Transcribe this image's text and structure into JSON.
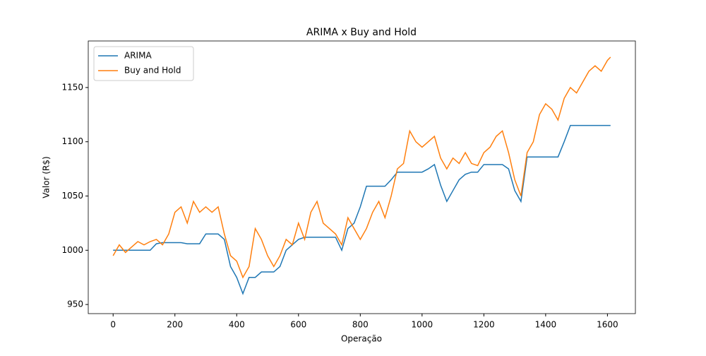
{
  "chart_data": {
    "type": "line",
    "title": "ARIMA x Buy and Hold",
    "x_label": "Operação",
    "y_label": "Valor (R$)",
    "x": [
      0,
      20,
      40,
      60,
      80,
      100,
      120,
      140,
      160,
      180,
      200,
      220,
      240,
      260,
      280,
      300,
      320,
      340,
      360,
      380,
      400,
      420,
      440,
      460,
      480,
      500,
      520,
      540,
      560,
      580,
      600,
      620,
      640,
      660,
      680,
      700,
      720,
      740,
      760,
      780,
      800,
      820,
      840,
      860,
      880,
      900,
      920,
      940,
      960,
      980,
      1000,
      1020,
      1040,
      1060,
      1080,
      1100,
      1120,
      1140,
      1160,
      1180,
      1200,
      1220,
      1240,
      1260,
      1280,
      1300,
      1320,
      1340,
      1360,
      1380,
      1400,
      1420,
      1440,
      1460,
      1480,
      1500,
      1520,
      1540,
      1560,
      1580,
      1600,
      1610
    ],
    "series": [
      {
        "name": "ARIMA",
        "color": "#1f77b4",
        "values": [
          1000,
          1000,
          1000,
          1000,
          1000,
          1000,
          1000,
          1006,
          1007,
          1007,
          1007,
          1007,
          1006,
          1006,
          1006,
          1015,
          1015,
          1015,
          1010,
          985,
          975,
          960,
          975,
          975,
          980,
          980,
          980,
          985,
          1000,
          1005,
          1010,
          1012,
          1012,
          1012,
          1012,
          1012,
          1012,
          1000,
          1020,
          1025,
          1040,
          1059,
          1059,
          1059,
          1059,
          1065,
          1072,
          1072,
          1072,
          1072,
          1072,
          1075,
          1079,
          1060,
          1045,
          1055,
          1065,
          1070,
          1072,
          1072,
          1079,
          1079,
          1079,
          1079,
          1075,
          1055,
          1045,
          1086,
          1086,
          1086,
          1086,
          1086,
          1086,
          1100,
          1115,
          1115,
          1115,
          1115,
          1115,
          1115,
          1115,
          1115
        ]
      },
      {
        "name": "Buy and Hold",
        "color": "#ff7f0e",
        "values": [
          995,
          1005,
          998,
          1003,
          1008,
          1005,
          1008,
          1010,
          1005,
          1015,
          1035,
          1040,
          1025,
          1045,
          1035,
          1040,
          1035,
          1040,
          1015,
          995,
          990,
          975,
          985,
          1020,
          1010,
          995,
          985,
          995,
          1010,
          1005,
          1025,
          1010,
          1035,
          1045,
          1025,
          1020,
          1015,
          1005,
          1030,
          1020,
          1010,
          1020,
          1035,
          1045,
          1030,
          1050,
          1075,
          1080,
          1110,
          1100,
          1095,
          1100,
          1105,
          1085,
          1075,
          1085,
          1080,
          1090,
          1080,
          1078,
          1090,
          1095,
          1105,
          1110,
          1090,
          1065,
          1050,
          1090,
          1100,
          1125,
          1135,
          1130,
          1120,
          1140,
          1150,
          1145,
          1155,
          1165,
          1170,
          1165,
          1175,
          1178
        ]
      }
    ],
    "xlim": [
      -80.5,
      1690.5
    ],
    "ylim": [
      941.6,
      1192.9
    ],
    "xticks": [
      0,
      200,
      400,
      600,
      800,
      1000,
      1200,
      1400,
      1600
    ],
    "yticks": [
      950,
      1000,
      1050,
      1100,
      1150
    ],
    "legend": "upper-left"
  }
}
